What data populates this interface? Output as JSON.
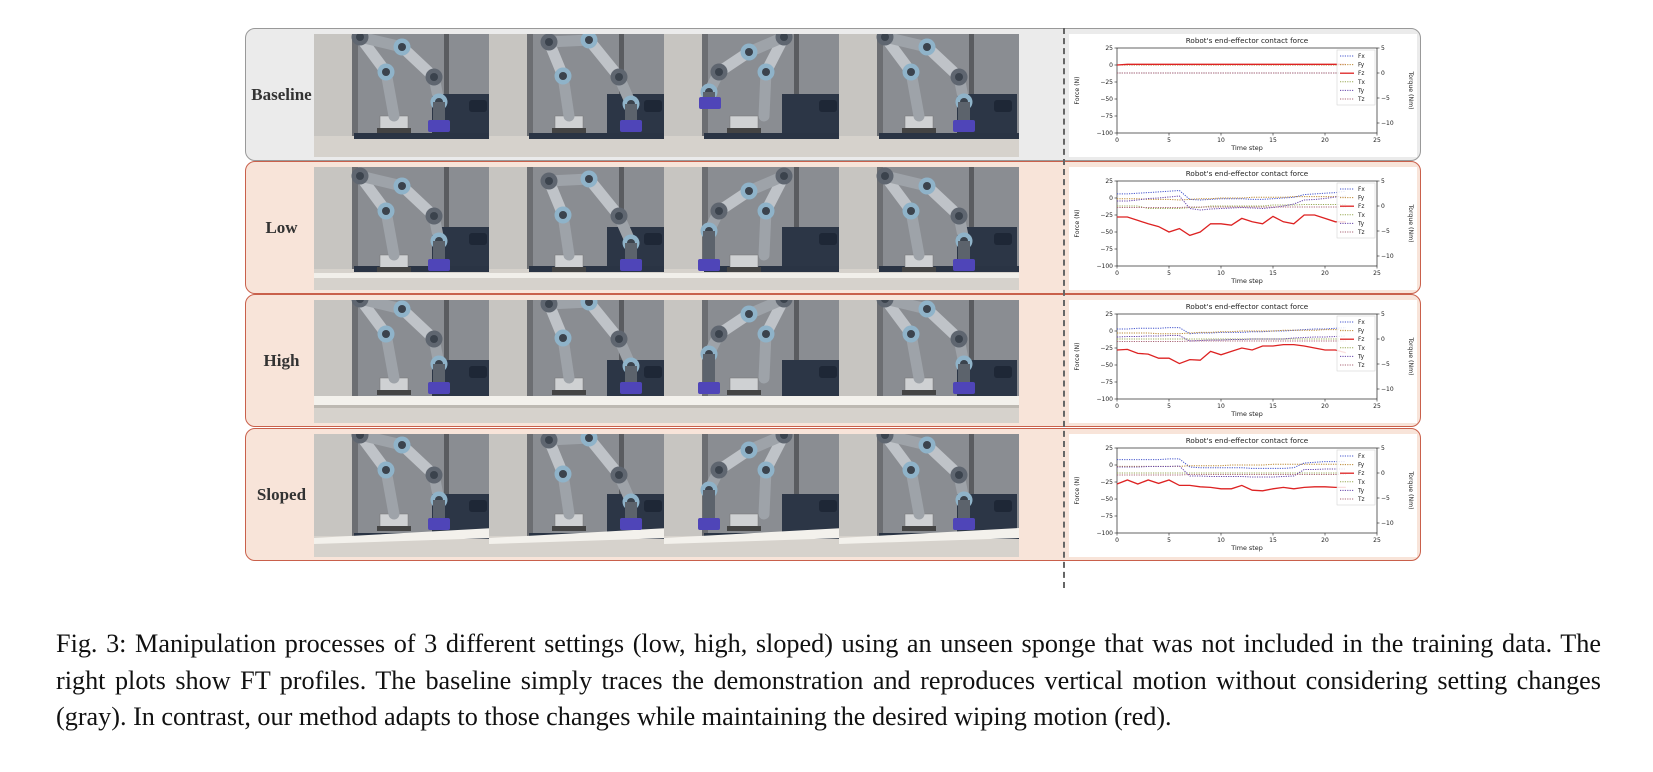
{
  "colors": {
    "baseline_bg": "#ebebeb",
    "baseline_border": "#999999",
    "ours_bg": "#f8e4d9",
    "ours_border": "#c9604b",
    "fx": "#4455cc",
    "fy": "#bb8833",
    "fz": "#dd2222",
    "tx": "#99aa55",
    "ty": "#6644aa",
    "tz": "#aa6677"
  },
  "rows": [
    {
      "label": "Baseline",
      "surface": "none",
      "photos": [
        {
          "pose": "up",
          "block": "ground"
        },
        {
          "pose": "bent",
          "block": "ground"
        },
        {
          "pose": "reach",
          "block": "lifted"
        },
        {
          "pose": "up",
          "block": "ground"
        }
      ]
    },
    {
      "label": "Low",
      "surface": "low",
      "photos": [
        {
          "pose": "up",
          "block": "ground"
        },
        {
          "pose": "bent",
          "block": "ground"
        },
        {
          "pose": "reach",
          "block": "ground"
        },
        {
          "pose": "up",
          "block": "ground"
        }
      ]
    },
    {
      "label": "High",
      "surface": "high",
      "photos": [
        {
          "pose": "up",
          "block": "ground"
        },
        {
          "pose": "bent",
          "block": "ground"
        },
        {
          "pose": "reach",
          "block": "ground"
        },
        {
          "pose": "up",
          "block": "ground"
        }
      ]
    },
    {
      "label": "Sloped",
      "surface": "sloped",
      "photos": [
        {
          "pose": "up",
          "block": "ground"
        },
        {
          "pose": "bent",
          "block": "ground"
        },
        {
          "pose": "reach",
          "block": "ground"
        },
        {
          "pose": "up",
          "block": "ground"
        }
      ]
    }
  ],
  "chart_data": [
    {
      "type": "line",
      "title": "Robot's end-effector contact force",
      "xlabel": "Time step",
      "ylabel": "Force (N)",
      "y2label": "Torque (Nm)",
      "xlim": [
        0,
        25
      ],
      "ylim": [
        -100,
        25
      ],
      "y2lim": [
        -12,
        5
      ],
      "xticks": [
        0,
        5,
        10,
        15,
        20,
        25
      ],
      "yticks": [
        25,
        0,
        -25,
        -50,
        -75,
        -100
      ],
      "y2ticks": [
        5,
        0,
        -5,
        -10
      ],
      "x": [
        0,
        1,
        2,
        3,
        4,
        5,
        6,
        7,
        8,
        9,
        10,
        11,
        12,
        13,
        14,
        15,
        16,
        17,
        18,
        19,
        20,
        21,
        22
      ],
      "series": [
        {
          "name": "Fx",
          "axis": "left",
          "style": "dotted",
          "values": [
            0,
            0,
            0,
            0,
            0,
            0,
            0,
            0,
            0,
            0,
            0,
            0,
            0,
            0,
            0,
            0,
            0,
            0,
            0,
            0,
            0,
            0,
            0
          ]
        },
        {
          "name": "Fy",
          "axis": "left",
          "style": "dotted",
          "values": [
            0,
            0,
            0,
            0,
            0,
            0,
            0,
            0,
            0,
            0,
            0,
            0,
            0,
            0,
            0,
            0,
            0,
            0,
            0,
            0,
            0,
            0,
            0
          ]
        },
        {
          "name": "Fz",
          "axis": "left",
          "style": "solid",
          "values": [
            0,
            1,
            1,
            1,
            1,
            1,
            1,
            1,
            1,
            1,
            1,
            1,
            1,
            1,
            1,
            1,
            1,
            1,
            1,
            1,
            1,
            1,
            1
          ]
        },
        {
          "name": "Tx",
          "axis": "right",
          "style": "dotted",
          "values": [
            0,
            0,
            0,
            0,
            0,
            0,
            0,
            0,
            0,
            0,
            0,
            0,
            0,
            0,
            0,
            0,
            0,
            0,
            0,
            0,
            0,
            0,
            0
          ]
        },
        {
          "name": "Ty",
          "axis": "right",
          "style": "dotted",
          "values": [
            0,
            0,
            0,
            0,
            0,
            0,
            0,
            0,
            0,
            0,
            0,
            0,
            0,
            0,
            0,
            0,
            0,
            0,
            0,
            0,
            0,
            0,
            0
          ]
        },
        {
          "name": "Tz",
          "axis": "right",
          "style": "dotted",
          "values": [
            0,
            0,
            0,
            0,
            0,
            0,
            0,
            0,
            0,
            0,
            0,
            0,
            0,
            0,
            0,
            0,
            0,
            0,
            0,
            0,
            0,
            0,
            0
          ]
        }
      ],
      "legend": "top-right"
    },
    {
      "type": "line",
      "title": "Robot's end-effector contact force",
      "xlabel": "Time step",
      "ylabel": "Force (N)",
      "y2label": "Torque (Nm)",
      "xlim": [
        0,
        25
      ],
      "ylim": [
        -100,
        25
      ],
      "y2lim": [
        -12,
        5
      ],
      "xticks": [
        0,
        5,
        10,
        15,
        20,
        25
      ],
      "yticks": [
        25,
        0,
        -25,
        -50,
        -75,
        -100
      ],
      "y2ticks": [
        5,
        0,
        -5,
        -10
      ],
      "x": [
        0,
        1,
        2,
        3,
        4,
        5,
        6,
        7,
        8,
        9,
        10,
        11,
        12,
        13,
        14,
        15,
        16,
        17,
        18,
        19,
        20,
        21,
        22
      ],
      "series": [
        {
          "name": "Fx",
          "axis": "left",
          "style": "dotted",
          "values": [
            6,
            6,
            7,
            8,
            9,
            10,
            11,
            -2,
            -3,
            -2,
            -1,
            -1,
            -1,
            -2,
            -2,
            -1,
            0,
            1,
            5,
            6,
            7,
            8,
            10
          ]
        },
        {
          "name": "Fy",
          "axis": "left",
          "style": "dotted",
          "values": [
            -1,
            -1,
            -1,
            -2,
            -2,
            -2,
            -3,
            -2,
            -1,
            -1,
            0,
            0,
            0,
            1,
            1,
            1,
            1,
            2,
            2,
            2,
            2,
            2,
            2
          ]
        },
        {
          "name": "Fz",
          "axis": "left",
          "style": "solid",
          "values": [
            -28,
            -28,
            -33,
            -38,
            -42,
            -50,
            -45,
            -55,
            -50,
            -38,
            -38,
            -40,
            -30,
            -35,
            -38,
            -27,
            -35,
            -38,
            -25,
            -25,
            -30,
            -35,
            -35
          ]
        },
        {
          "name": "Tx",
          "axis": "right",
          "style": "dotted",
          "values": [
            0,
            0,
            0,
            -0.5,
            -0.5,
            -0.5,
            -0.5,
            -0.3,
            -0.3,
            0,
            0,
            0,
            0,
            0,
            0,
            0.2,
            0.2,
            0.2,
            0.3,
            0.3,
            0.3,
            0.3,
            0.3
          ]
        },
        {
          "name": "Ty",
          "axis": "right",
          "style": "dotted",
          "values": [
            1,
            1,
            1.2,
            1.5,
            1.6,
            1.8,
            2,
            -0.5,
            -0.8,
            -0.6,
            -0.5,
            -0.4,
            -0.3,
            -0.4,
            -0.5,
            -0.3,
            0,
            0.4,
            1.2,
            1.3,
            1.5,
            1.8,
            2
          ]
        },
        {
          "name": "Tz",
          "axis": "right",
          "style": "dotted",
          "values": [
            -0.3,
            -0.3,
            -0.3,
            -0.3,
            -0.3,
            -0.3,
            -0.3,
            -0.2,
            -0.2,
            -0.2,
            -0.2,
            -0.2,
            -0.2,
            -0.2,
            -0.2,
            -0.2,
            -0.2,
            -0.2,
            -0.2,
            -0.2,
            -0.2,
            -0.2,
            -0.2
          ]
        }
      ],
      "legend": "top-right"
    },
    {
      "type": "line",
      "title": "Robot's end-effector contact force",
      "xlabel": "Time step",
      "ylabel": "Force (N)",
      "y2label": "Torque (Nm)",
      "xlim": [
        0,
        25
      ],
      "ylim": [
        -100,
        25
      ],
      "y2lim": [
        -12,
        5
      ],
      "xticks": [
        0,
        5,
        10,
        15,
        20,
        25
      ],
      "yticks": [
        25,
        0,
        -25,
        -50,
        -75,
        -100
      ],
      "y2ticks": [
        5,
        0,
        -5,
        -10
      ],
      "x": [
        0,
        1,
        2,
        3,
        4,
        5,
        6,
        7,
        8,
        9,
        10,
        11,
        12,
        13,
        14,
        15,
        16,
        17,
        18,
        19,
        20,
        21,
        22
      ],
      "series": [
        {
          "name": "Fx",
          "axis": "left",
          "style": "dotted",
          "values": [
            3,
            3,
            4,
            4,
            4,
            5,
            5,
            -4,
            -3,
            -3,
            -2,
            -2,
            -2,
            -1,
            -1,
            0,
            0,
            1,
            2,
            3,
            3,
            4,
            5
          ]
        },
        {
          "name": "Fy",
          "axis": "left",
          "style": "dotted",
          "values": [
            -3,
            -3,
            -3,
            -3,
            -4,
            -4,
            -4,
            -3,
            -2,
            -2,
            -1,
            -1,
            0,
            0,
            0,
            0,
            1,
            1,
            1,
            1,
            2,
            2,
            2
          ]
        },
        {
          "name": "Fz",
          "axis": "left",
          "style": "solid",
          "values": [
            -28,
            -27,
            -33,
            -34,
            -40,
            -40,
            -48,
            -42,
            -43,
            -30,
            -35,
            -30,
            -25,
            -28,
            -22,
            -22,
            -20,
            -20,
            -22,
            -25,
            -28,
            -28,
            -32
          ]
        },
        {
          "name": "Tx",
          "axis": "right",
          "style": "dotted",
          "values": [
            0,
            0,
            0,
            0,
            0,
            0,
            0,
            0,
            0,
            0,
            0,
            0,
            0,
            0,
            0,
            0,
            0,
            0,
            0,
            0,
            0,
            0,
            0
          ]
        },
        {
          "name": "Ty",
          "axis": "right",
          "style": "dotted",
          "values": [
            0.4,
            0.5,
            0.5,
            0.6,
            0.6,
            0.7,
            0.7,
            -0.4,
            -0.3,
            -0.2,
            -0.2,
            -0.1,
            -0.1,
            0,
            0,
            0,
            0,
            0.2,
            0.3,
            0.4,
            0.4,
            0.5,
            0.6
          ]
        },
        {
          "name": "Tz",
          "axis": "right",
          "style": "dotted",
          "values": [
            -0.5,
            -0.5,
            -0.5,
            -0.5,
            -0.5,
            -0.5,
            -0.5,
            -0.4,
            -0.4,
            -0.4,
            -0.4,
            -0.4,
            -0.4,
            -0.4,
            -0.4,
            -0.4,
            -0.4,
            -0.4,
            -0.4,
            -0.4,
            -0.4,
            -0.4,
            -0.4
          ]
        }
      ],
      "legend": "top-right"
    },
    {
      "type": "line",
      "title": "Robot's end-effector contact force",
      "xlabel": "Time step",
      "ylabel": "Force (N)",
      "y2label": "Torque (Nm)",
      "xlim": [
        0,
        25
      ],
      "ylim": [
        -100,
        25
      ],
      "y2lim": [
        -12,
        5
      ],
      "xticks": [
        0,
        5,
        10,
        15,
        20,
        25
      ],
      "yticks": [
        25,
        0,
        -25,
        -50,
        -75,
        -100
      ],
      "y2ticks": [
        5,
        0,
        -5,
        -10
      ],
      "x": [
        0,
        1,
        2,
        3,
        4,
        5,
        6,
        7,
        8,
        9,
        10,
        11,
        12,
        13,
        14,
        15,
        16,
        17,
        18,
        19,
        20,
        21,
        22
      ],
      "series": [
        {
          "name": "Fx",
          "axis": "left",
          "style": "dotted",
          "values": [
            8,
            8,
            8,
            8,
            8,
            9,
            9,
            -3,
            -4,
            -4,
            -4,
            -4,
            -4,
            -5,
            -5,
            -5,
            -5,
            -4,
            3,
            4,
            5,
            5,
            5
          ]
        },
        {
          "name": "Fy",
          "axis": "left",
          "style": "dotted",
          "values": [
            -2,
            -2,
            -2,
            -2,
            -2,
            -2,
            -2,
            -1,
            -1,
            -1,
            -1,
            0,
            0,
            0,
            0,
            1,
            1,
            1,
            1,
            1,
            1,
            1,
            1
          ]
        },
        {
          "name": "Fz",
          "axis": "left",
          "style": "solid",
          "values": [
            -28,
            -22,
            -28,
            -22,
            -27,
            -22,
            -30,
            -30,
            -32,
            -33,
            -35,
            -35,
            -30,
            -37,
            -38,
            -35,
            -33,
            -35,
            -33,
            -32,
            -32,
            -33,
            -33
          ]
        },
        {
          "name": "Tx",
          "axis": "right",
          "style": "dotted",
          "values": [
            0,
            0,
            0,
            0,
            0,
            0,
            0,
            0,
            0,
            0,
            0,
            0,
            0,
            0,
            0,
            0,
            0,
            0,
            0,
            0,
            0,
            0,
            0
          ]
        },
        {
          "name": "Ty",
          "axis": "right",
          "style": "dotted",
          "values": [
            1.2,
            1.2,
            1.2,
            1.3,
            1.3,
            1.3,
            1.4,
            -0.6,
            -0.6,
            -0.7,
            -0.7,
            -0.7,
            -0.7,
            -0.8,
            -0.8,
            -0.8,
            -0.7,
            -0.6,
            0.7,
            0.7,
            0.8,
            0.8,
            0.8
          ]
        },
        {
          "name": "Tz",
          "axis": "right",
          "style": "dotted",
          "values": [
            -0.4,
            -0.4,
            -0.4,
            -0.4,
            -0.4,
            -0.4,
            -0.4,
            -0.3,
            -0.3,
            -0.3,
            -0.3,
            -0.3,
            -0.3,
            -0.3,
            -0.3,
            -0.3,
            -0.3,
            -0.3,
            -0.3,
            -0.3,
            -0.3,
            -0.3,
            -0.3
          ]
        }
      ],
      "legend": "top-right"
    }
  ],
  "caption": "Fig. 3: Manipulation processes of 3 different settings (low, high, sloped) using an unseen sponge that was not included in the training data. The right plots show FT profiles. The baseline simply traces the demonstration and reproduces vertical motion without considering setting changes (gray). In contrast, our method adapts to those changes while maintaining the desired wiping motion (red)."
}
